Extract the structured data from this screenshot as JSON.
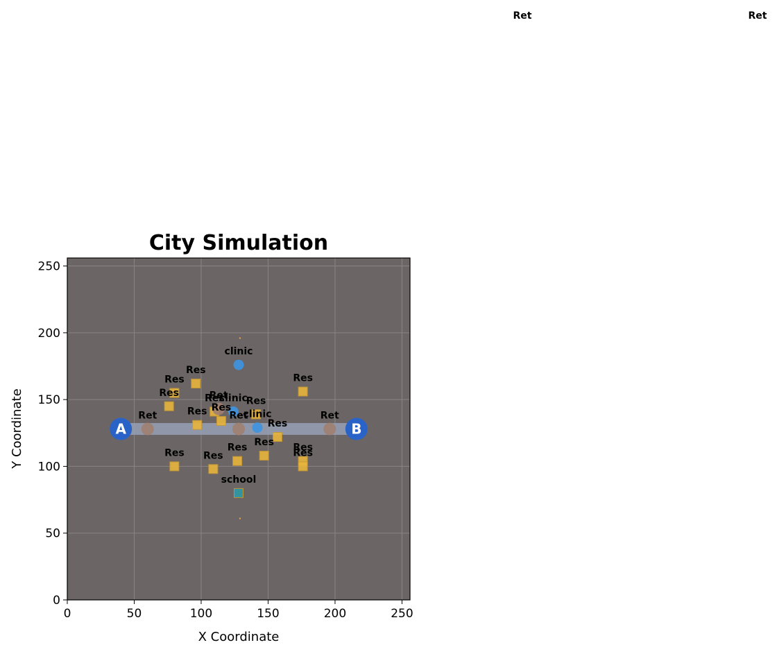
{
  "chart_data": {
    "type": "scatter",
    "title": "City Simulation",
    "xlabel": "X Coordinate",
    "ylabel": "Y Coordinate",
    "xlim": [
      0,
      256
    ],
    "ylim": [
      0,
      256
    ],
    "xticks": [
      0,
      50,
      100,
      150,
      200,
      250
    ],
    "yticks": [
      0,
      50,
      100,
      150,
      200,
      250
    ],
    "grid": true,
    "background_color": "#6b6565",
    "road": {
      "from": [
        40,
        128
      ],
      "to": [
        216,
        128
      ],
      "color": "#96a0b4"
    },
    "endpoints": [
      {
        "label": "A",
        "x": 40,
        "y": 128,
        "color": "#2a63c8"
      },
      {
        "label": "B",
        "x": 216,
        "y": 128,
        "color": "#2a63c8"
      }
    ],
    "series": [
      {
        "name": "Res",
        "marker": "square",
        "color": "#e8b43c",
        "points": [
          {
            "x": 96,
            "y": 162
          },
          {
            "x": 80,
            "y": 155
          },
          {
            "x": 76,
            "y": 145
          },
          {
            "x": 110,
            "y": 141
          },
          {
            "x": 115,
            "y": 134
          },
          {
            "x": 97,
            "y": 131
          },
          {
            "x": 141,
            "y": 139
          },
          {
            "x": 157,
            "y": 122
          },
          {
            "x": 176,
            "y": 156
          },
          {
            "x": 80,
            "y": 100
          },
          {
            "x": 109,
            "y": 98
          },
          {
            "x": 127,
            "y": 104
          },
          {
            "x": 147,
            "y": 108
          },
          {
            "x": 176,
            "y": 104
          },
          {
            "x": 176,
            "y": 100
          }
        ]
      },
      {
        "name": "Ret",
        "marker": "circle",
        "color": "#a08070",
        "points": [
          {
            "x": 60,
            "y": 128
          },
          {
            "x": 128,
            "y": 128
          },
          {
            "x": 196,
            "y": 128
          },
          {
            "x": 113,
            "y": 143
          }
        ]
      },
      {
        "name": "clinic",
        "marker": "circle",
        "color": "#3d94e0",
        "points": [
          {
            "x": 128,
            "y": 176
          },
          {
            "x": 124,
            "y": 141
          },
          {
            "x": 142,
            "y": 129
          }
        ]
      },
      {
        "name": "school",
        "marker": "square",
        "color": "#2d9aa6",
        "points": [
          {
            "x": 128,
            "y": 80
          }
        ]
      }
    ],
    "small_markers": [
      {
        "x": 129,
        "y": 196
      },
      {
        "x": 129,
        "y": 61
      }
    ],
    "stray_labels": [
      "Ret",
      "Ret"
    ]
  }
}
